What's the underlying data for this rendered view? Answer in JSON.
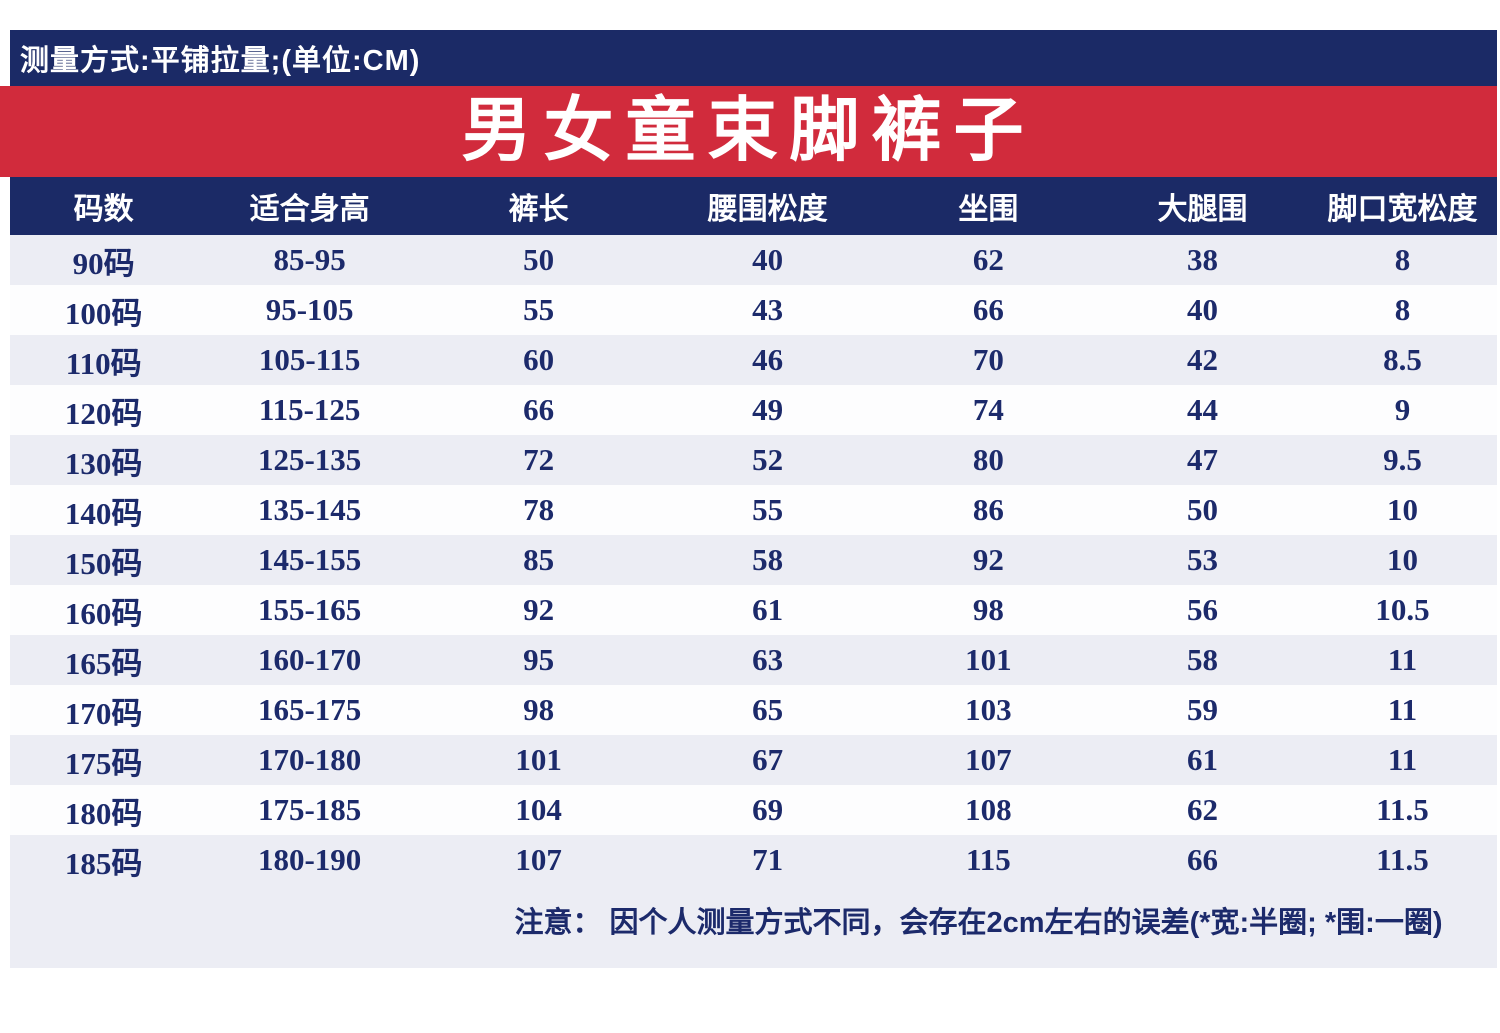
{
  "colors": {
    "navy": "#1b2a66",
    "red": "#d12b3c",
    "stripe_row": "#ecedf4",
    "plain_row": "#fdfdfe",
    "data_text": "#1c2a6b",
    "header_text": "#ffffff"
  },
  "measure_bar": {
    "text": "测量方式:平铺拉量;(单位:CM)"
  },
  "title_banner": {
    "text": "男女童束脚裤子"
  },
  "table": {
    "headers": [
      "码数",
      "适合身高",
      "裤长",
      "腰围松度",
      "坐围",
      "大腿围",
      "脚口宽松度"
    ],
    "rows": [
      [
        "90码",
        "85-95",
        "50",
        "40",
        "62",
        "38",
        "8"
      ],
      [
        "100码",
        "95-105",
        "55",
        "43",
        "66",
        "40",
        "8"
      ],
      [
        "110码",
        "105-115",
        "60",
        "46",
        "70",
        "42",
        "8.5"
      ],
      [
        "120码",
        "115-125",
        "66",
        "49",
        "74",
        "44",
        "9"
      ],
      [
        "130码",
        "125-135",
        "72",
        "52",
        "80",
        "47",
        "9.5"
      ],
      [
        "140码",
        "135-145",
        "78",
        "55",
        "86",
        "50",
        "10"
      ],
      [
        "150码",
        "145-155",
        "85",
        "58",
        "92",
        "53",
        "10"
      ],
      [
        "160码",
        "155-165",
        "92",
        "61",
        "98",
        "56",
        "10.5"
      ],
      [
        "165码",
        "160-170",
        "95",
        "63",
        "101",
        "58",
        "11"
      ],
      [
        "170码",
        "165-175",
        "98",
        "65",
        "103",
        "59",
        "11"
      ],
      [
        "175码",
        "170-180",
        "101",
        "67",
        "107",
        "61",
        "11"
      ],
      [
        "180码",
        "175-185",
        "104",
        "69",
        "108",
        "62",
        "11.5"
      ],
      [
        "185码",
        "180-190",
        "107",
        "71",
        "115",
        "66",
        "11.5"
      ]
    ],
    "note": "注意： 因个人测量方式不同，会存在2cm左右的误差(*宽:半圈; *围:一圈)"
  }
}
